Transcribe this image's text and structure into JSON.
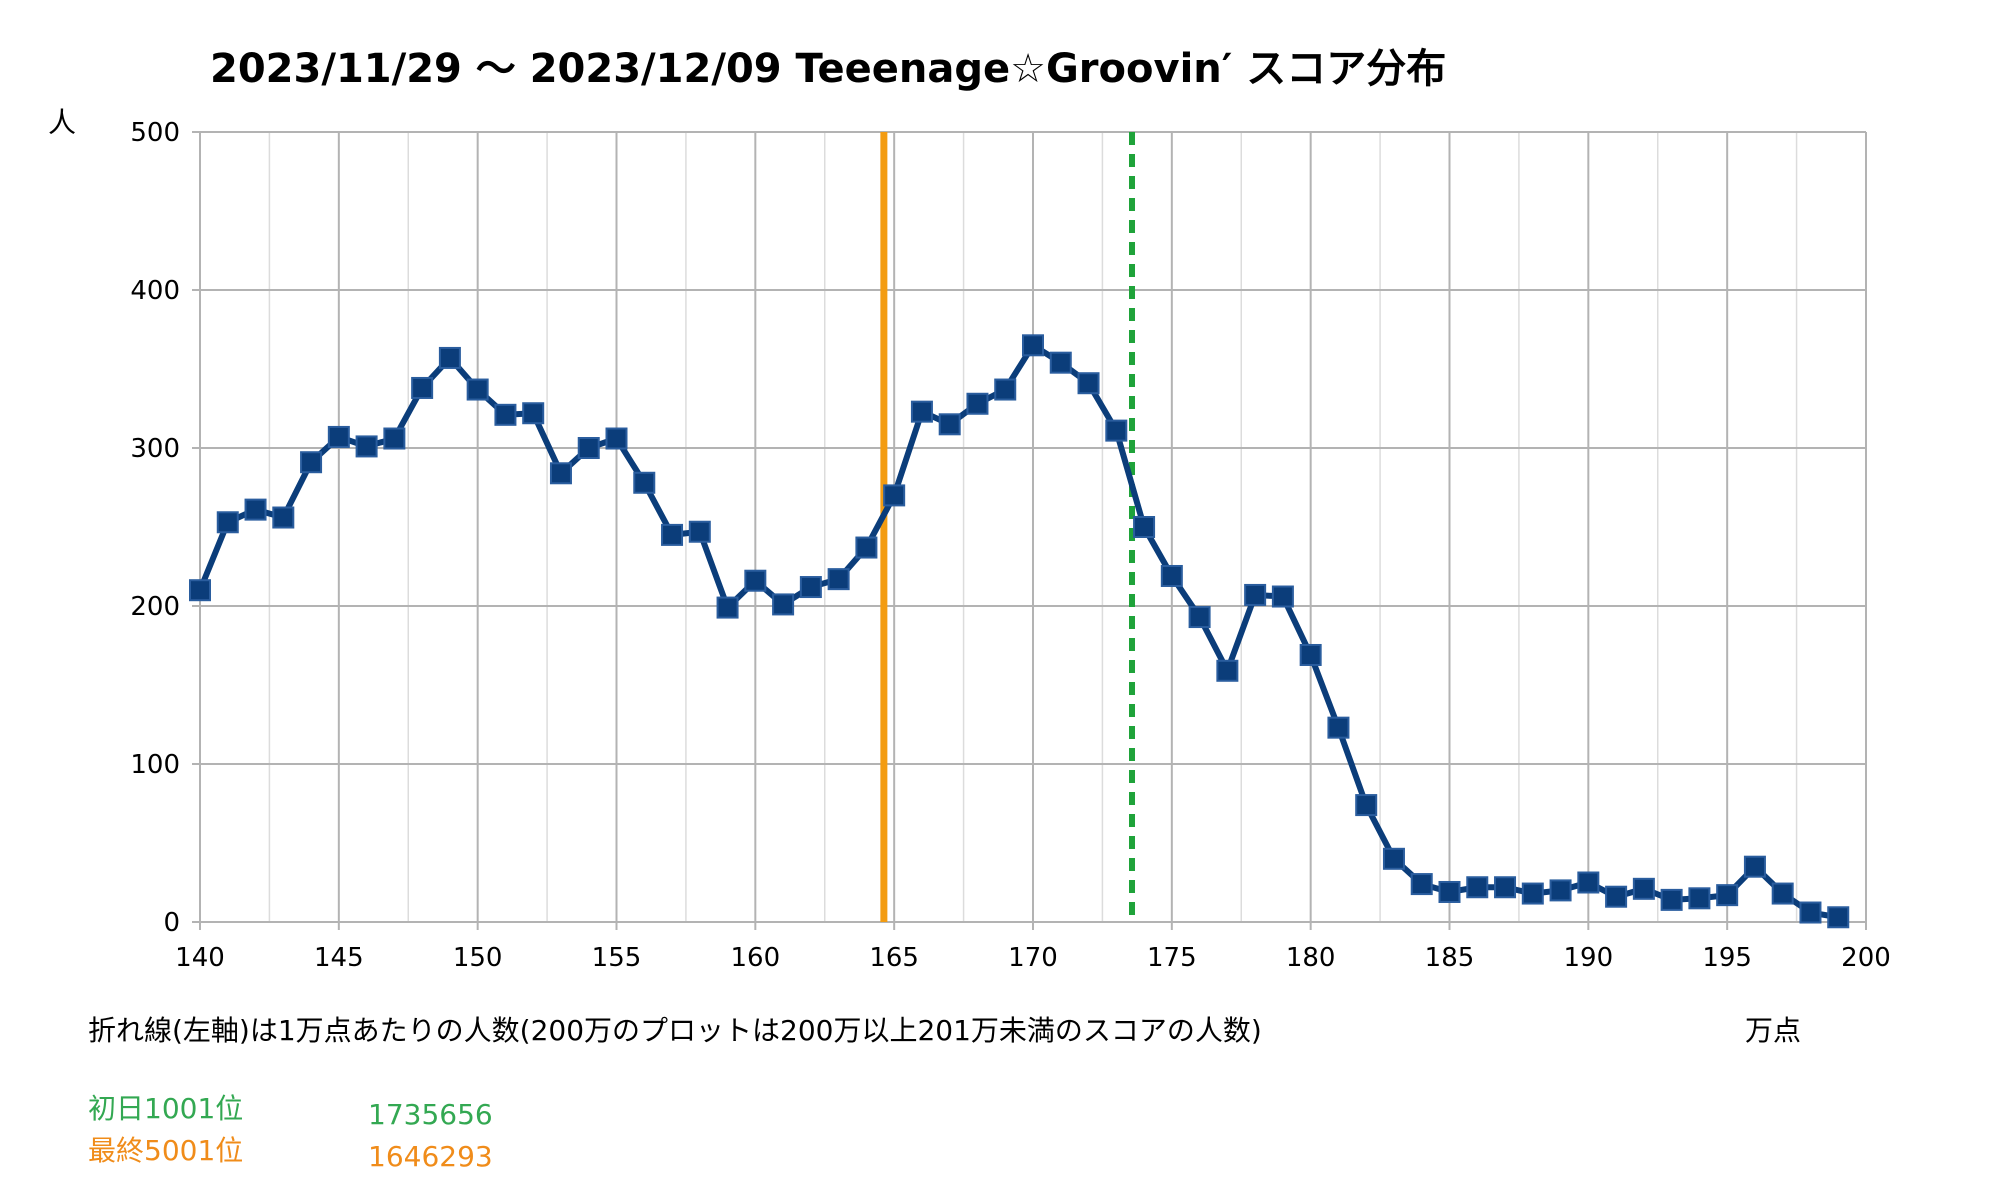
{
  "chart_data": {
    "type": "line",
    "title": "2023/11/29 ～ 2023/12/09 Teeenage☆Groovin′ スコア分布",
    "ylabel": "人",
    "xlabel": "万点",
    "note": "折れ線(左軸)は1万点あたりの人数(200万のプロットは200万以上201万未満のスコアの人数)",
    "xlim": [
      140,
      200
    ],
    "ylim": [
      0,
      500
    ],
    "x_ticks": [
      140,
      145,
      150,
      155,
      160,
      165,
      170,
      175,
      180,
      185,
      190,
      195,
      200
    ],
    "y_ticks": [
      0,
      100,
      200,
      300,
      400,
      500
    ],
    "grid": true,
    "series": [
      {
        "color": "#0b3d7a",
        "marker": "square",
        "x": [
          140,
          141,
          142,
          143,
          144,
          145,
          146,
          147,
          148,
          149,
          150,
          151,
          152,
          153,
          154,
          155,
          156,
          157,
          158,
          159,
          160,
          161,
          162,
          163,
          164,
          165,
          166,
          167,
          168,
          169,
          170,
          171,
          172,
          173,
          174,
          175,
          176,
          177,
          178,
          179,
          180,
          181,
          182,
          183,
          184,
          185,
          186,
          187,
          188,
          189,
          190,
          191,
          192,
          193,
          194,
          195,
          196,
          197,
          198,
          199
        ],
        "values": [
          210,
          253,
          261,
          256,
          291,
          307,
          301,
          306,
          338,
          357,
          337,
          321,
          322,
          284,
          300,
          306,
          278,
          245,
          247,
          199,
          216,
          201,
          212,
          217,
          237,
          270,
          323,
          315,
          328,
          337,
          365,
          354,
          341,
          311,
          250,
          219,
          193,
          159,
          207,
          206,
          169,
          123,
          74,
          40,
          24,
          19,
          22,
          22,
          18,
          20,
          25,
          16,
          21,
          14,
          15,
          17,
          35,
          18,
          6,
          3
        ]
      }
    ],
    "reference_lines": [
      {
        "label": "最終5001位",
        "value": 1646293,
        "display": "1646293",
        "x": 164.6293,
        "color": "#f39c12",
        "style": "solid"
      },
      {
        "label": "初日1001位",
        "value": 1735656,
        "display": "1735656",
        "x": 173.5656,
        "color": "#1fa33a",
        "style": "dashed"
      }
    ]
  },
  "legend": {
    "green_label": "初日1001位",
    "green_value": "1735656",
    "orange_label": "最終5001位",
    "orange_value": "1646293"
  }
}
